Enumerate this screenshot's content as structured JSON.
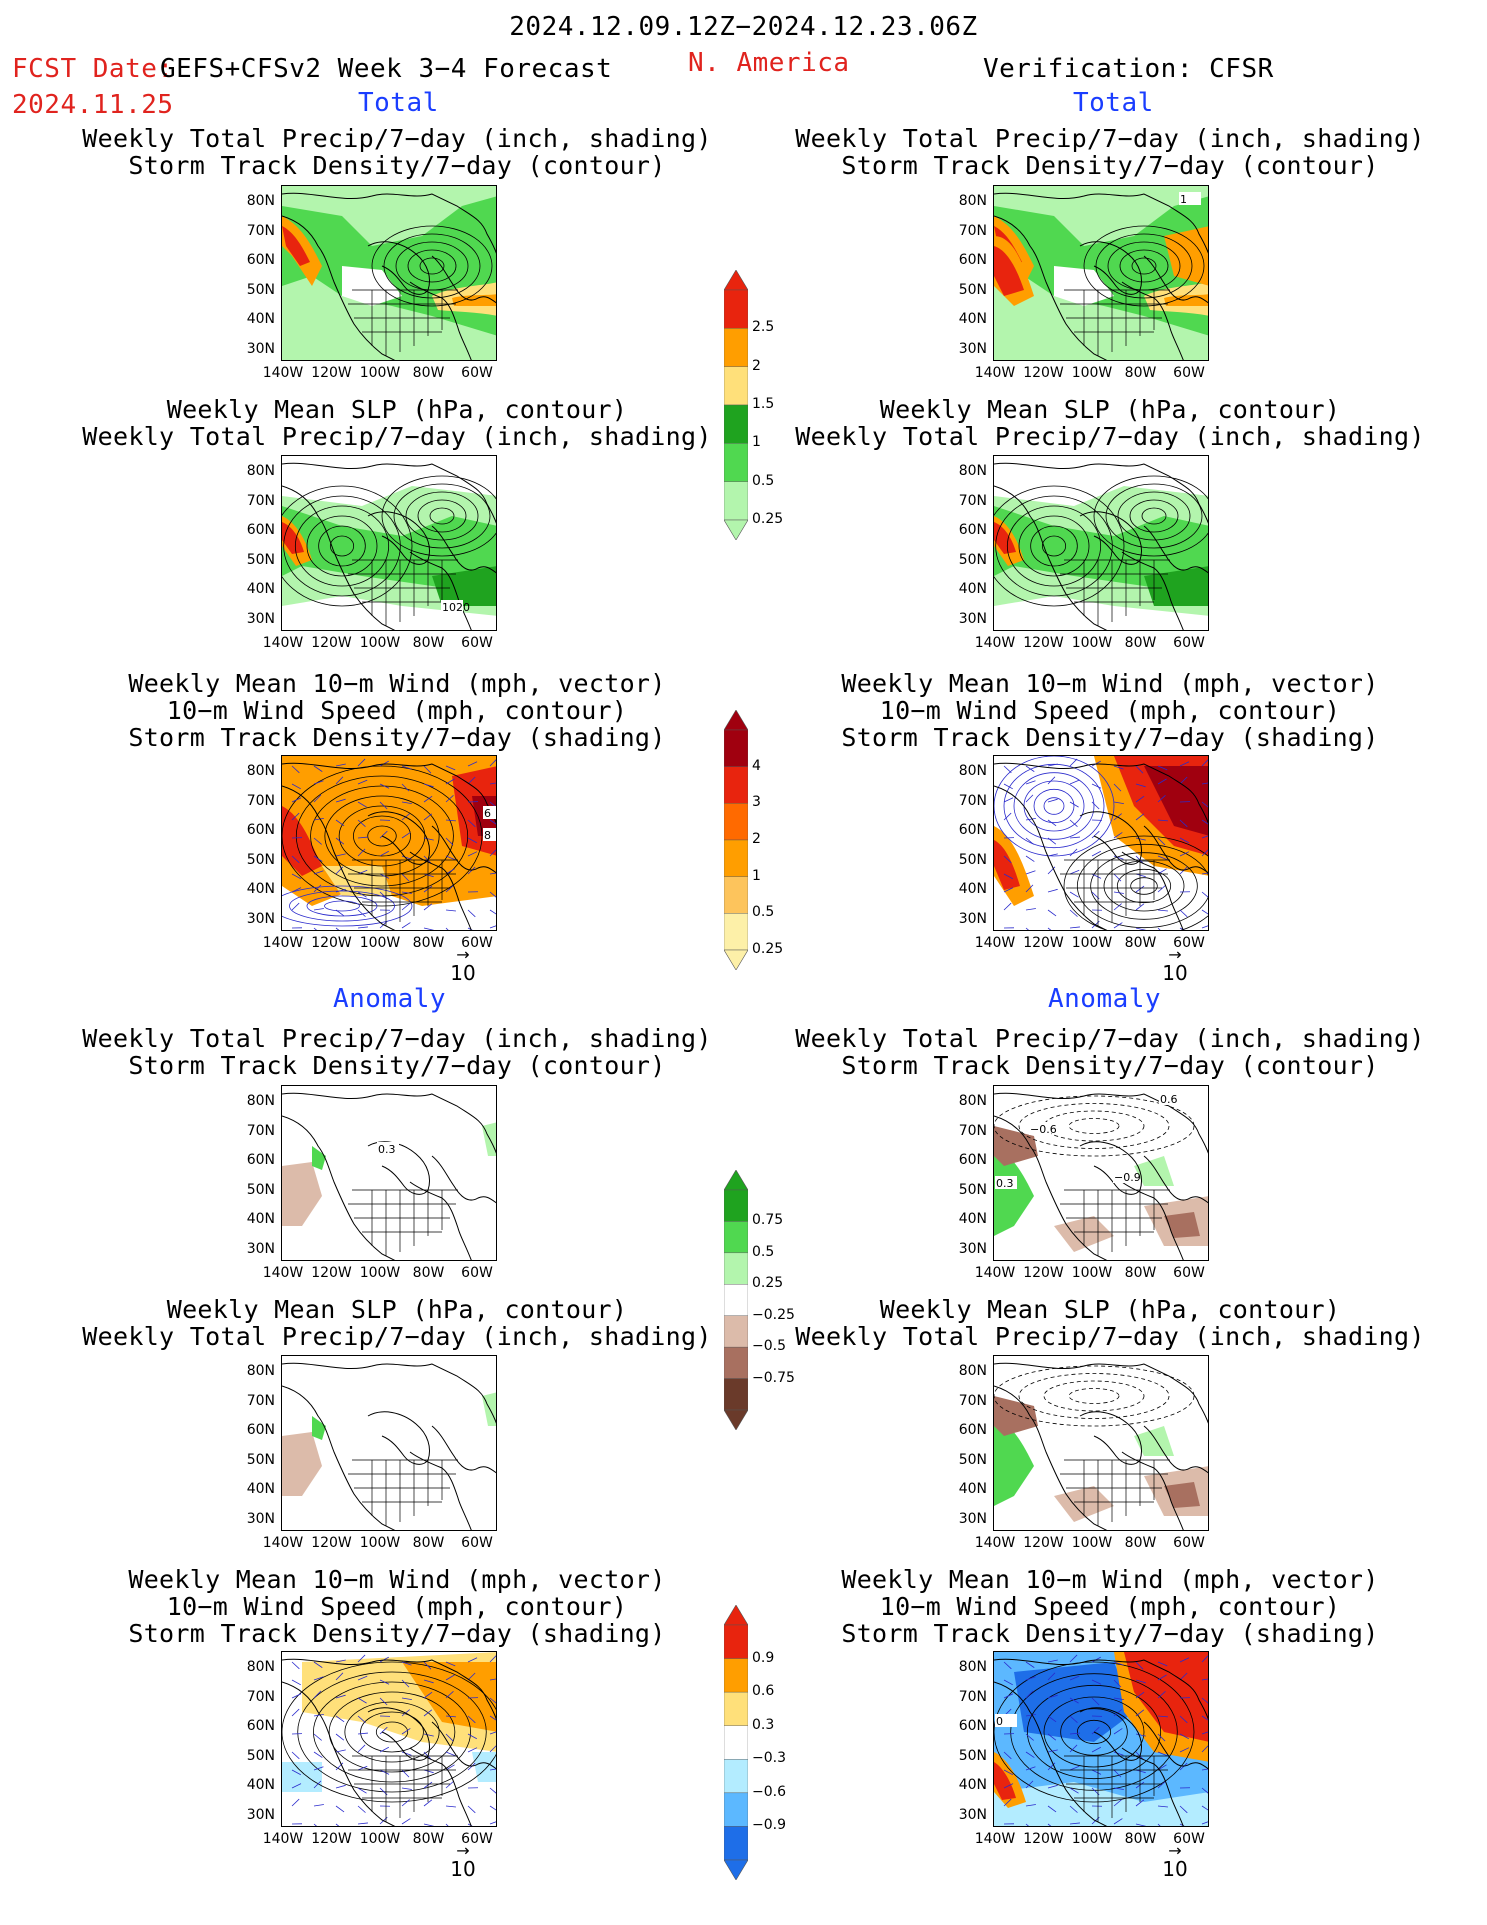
{
  "header": {
    "period": "2024.12.09.12Z−2024.12.23.06Z",
    "fcst_label": "FCST Date:",
    "fcst_date": "2024.11.25",
    "model": "GEFS+CFSv2 Week 3−4 Forecast",
    "region": "N. America",
    "verification": "Verification: CFSR"
  },
  "sections": {
    "total": "Total",
    "anomaly": "Anomaly"
  },
  "titles": {
    "precip_storm": [
      "Weekly Total Precip/7−day (inch, shading)",
      "Storm Track Density/7−day (contour)"
    ],
    "slp_precip": [
      "Weekly Mean SLP (hPa, contour)",
      "Weekly Total Precip/7−day (inch, shading)"
    ],
    "wind_storm": [
      "Weekly Mean 10−m Wind (mph, vector)",
      "10−m Wind Speed (mph, contour)",
      "Storm Track Density/7−day (shading)"
    ]
  },
  "axes": {
    "lat": [
      "80N",
      "70N",
      "60N",
      "50N",
      "40N",
      "30N"
    ],
    "lon": [
      "140W",
      "120W",
      "100W",
      "80W",
      "60W"
    ]
  },
  "vector_ref": "10",
  "panel_labels": {
    "slp_1020": "1020",
    "storm_1": "1",
    "wind_6": "6",
    "wind_8": "8",
    "anom_03": "0.3",
    "anom_06": "0.6",
    "anom_09": "−0.9",
    "anom_n06": "−0.6",
    "anom_wind_0": "0"
  },
  "colorbars": {
    "precip": {
      "labels": [
        "2.5",
        "2",
        "1.5",
        "1",
        "0.5",
        "0.25"
      ],
      "colors": [
        "#e8240e",
        "#ff9e00",
        "#ffe07a",
        "#1fa31f",
        "#50d850",
        "#b3f5ad"
      ]
    },
    "storm": {
      "labels": [
        "4",
        "3",
        "2",
        "1",
        "0.5",
        "0.25"
      ],
      "colors": [
        "#a0000f",
        "#e8240e",
        "#ff6a00",
        "#ff9e00",
        "#fdc45c",
        "#fdf0a8"
      ]
    },
    "precip_anom": {
      "labels": [
        "0.75",
        "0.5",
        "0.25",
        "−0.25",
        "−0.5",
        "−0.75"
      ],
      "colors": [
        "#1fa31f",
        "#50d850",
        "#b3f5ad",
        "#ffffff",
        "#dcbbaa",
        "#a87060",
        "#6a3a2a"
      ]
    },
    "storm_anom": {
      "labels": [
        "0.9",
        "0.6",
        "0.3",
        "−0.3",
        "−0.6",
        "−0.9"
      ],
      "colors": [
        "#e8240e",
        "#ff9e00",
        "#ffe07a",
        "#ffffff",
        "#b3ecff",
        "#5cb8ff",
        "#1e6ee8"
      ]
    }
  }
}
